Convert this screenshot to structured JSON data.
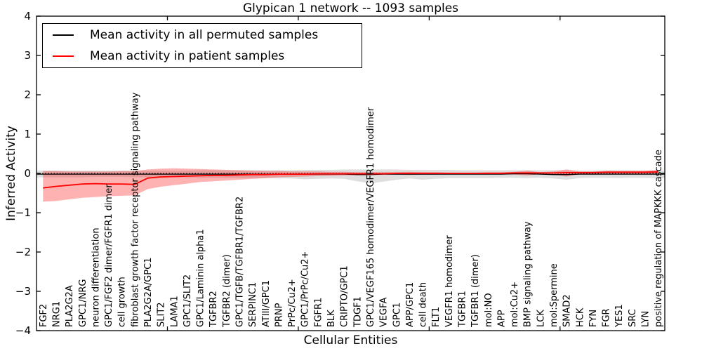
{
  "title": "Glypican 1 network -- 1093 samples",
  "axes": {
    "x_label": "Cellular Entities",
    "y_label": "Inferred Activity"
  },
  "legend": {
    "items": [
      {
        "label": "Mean activity in all permuted samples",
        "color": "#000000"
      },
      {
        "label": "Mean activity in patient samples",
        "color": "#ff0000"
      }
    ]
  },
  "chart_data": {
    "type": "line",
    "title": "Glypican 1 network -- 1093 samples",
    "xlabel": "Cellular Entities",
    "ylabel": "Inferred Activity",
    "ylim": [
      -4,
      4
    ],
    "y_ticks": [
      4,
      3,
      2,
      1,
      0,
      -1,
      -2,
      -3,
      -4
    ],
    "x_major_ticks": [
      10,
      20,
      30,
      40
    ],
    "zero_line": 0,
    "grid": false,
    "legend_position": "upper left",
    "categories": [
      "FGF2",
      "NRG1",
      "PLA2G2A",
      "GPC1/NRG",
      "neuron differentiation",
      "GPC1/FGF2 dimer/FGFR1 dimer",
      "cell growth",
      "fibroblast growth factor receptor signaling pathway",
      "PLA2G2A/GPC1",
      "SLIT2",
      "LAMA1",
      "GPC1/SLIT2",
      "GPC1/Laminin alpha1",
      "TGFBR2",
      "TGFBR2 (dimer)",
      "GPC1/TGFB/TGFBR1/TGFBR2",
      "SERPINC1",
      "ATIII/GPC1",
      "PRNP",
      "PrPc/Cu2+",
      "GPC1/PrPc/Cu2+",
      "FGFR1",
      "BLK",
      "CRIPTO/GPC1",
      "TDGF1",
      "GPC1/VEGF165 homodimer/VEGFR1 homodimer",
      "VEGFA",
      "GPC1",
      "APP/GPC1",
      "cell death",
      "FLT1",
      "VEGFR1 homodimer",
      "TGFBR1",
      "TGFBR1 (dimer)",
      "mol:NO",
      "APP",
      "mol:Cu2+",
      "BMP signaling pathway",
      "LCK",
      "mol:Spermine",
      "SMAD2",
      "HCK",
      "FYN",
      "FGR",
      "YES1",
      "SRC",
      "LYN",
      "positive regulation of MAPKKK cascade"
    ],
    "series": [
      {
        "name": "Mean activity in all permuted samples",
        "id": "permuted-mean-line",
        "color": "#000000",
        "width": 1.3,
        "extend_to_edges": true,
        "values": [
          -0.02,
          -0.02,
          -0.02,
          -0.02,
          -0.02,
          -0.02,
          -0.02,
          -0.02,
          -0.02,
          -0.02,
          -0.02,
          -0.02,
          -0.02,
          -0.02,
          -0.02,
          -0.02,
          -0.02,
          -0.02,
          -0.02,
          -0.02,
          -0.02,
          -0.02,
          -0.02,
          -0.02,
          -0.03,
          -0.03,
          -0.02,
          -0.02,
          -0.02,
          -0.02,
          -0.02,
          -0.02,
          -0.02,
          -0.02,
          -0.02,
          -0.02,
          -0.01,
          -0.01,
          -0.02,
          -0.03,
          -0.03,
          -0.02,
          -0.02,
          -0.02,
          -0.02,
          -0.02,
          -0.02,
          -0.02
        ]
      },
      {
        "name": "Mean activity in patient samples",
        "id": "patient-mean-line",
        "color": "#ff0000",
        "width": 1.8,
        "extend_to_edges": false,
        "values": [
          -0.37,
          -0.33,
          -0.3,
          -0.27,
          -0.26,
          -0.27,
          -0.27,
          -0.28,
          -0.12,
          -0.09,
          -0.08,
          -0.07,
          -0.06,
          -0.05,
          -0.05,
          -0.04,
          -0.03,
          -0.03,
          -0.02,
          -0.02,
          -0.02,
          -0.01,
          -0.01,
          -0.01,
          -0.01,
          -0.01,
          -0.01,
          0.0,
          0.0,
          0.0,
          0.0,
          0.0,
          0.0,
          0.0,
          0.0,
          0.0,
          0.01,
          0.01,
          0.01,
          0.01,
          0.02,
          0.02,
          0.02,
          0.03,
          0.03,
          0.03,
          0.03,
          0.04
        ]
      }
    ],
    "bands": [
      {
        "name": "permuted-range-band",
        "color": "rgba(0,0,0,0.13)",
        "extend_to_edges": true,
        "lower": [
          -0.1,
          -0.1,
          -0.1,
          -0.1,
          -0.09,
          -0.09,
          -0.09,
          -0.1,
          -0.1,
          -0.1,
          -0.1,
          -0.1,
          -0.11,
          -0.11,
          -0.11,
          -0.12,
          -0.12,
          -0.12,
          -0.12,
          -0.13,
          -0.15,
          -0.14,
          -0.13,
          -0.14,
          -0.2,
          -0.25,
          -0.21,
          -0.16,
          -0.13,
          -0.16,
          -0.14,
          -0.12,
          -0.12,
          -0.12,
          -0.12,
          -0.11,
          -0.11,
          -0.12,
          -0.11,
          -0.13,
          -0.16,
          -0.12,
          -0.11,
          -0.11,
          -0.12,
          -0.11,
          -0.11,
          -0.12
        ],
        "upper": [
          0.07,
          0.07,
          0.07,
          0.07,
          0.07,
          0.07,
          0.07,
          0.07,
          0.07,
          0.07,
          0.07,
          0.07,
          0.08,
          0.08,
          0.08,
          0.08,
          0.08,
          0.08,
          0.08,
          0.08,
          0.09,
          0.09,
          0.09,
          0.1,
          0.1,
          0.1,
          0.1,
          0.1,
          0.09,
          0.09,
          0.09,
          0.09,
          0.08,
          0.08,
          0.08,
          0.08,
          0.08,
          0.08,
          0.08,
          0.08,
          0.08,
          0.07,
          0.07,
          0.08,
          0.08,
          0.08,
          0.07,
          0.07
        ]
      },
      {
        "name": "patient-range-band",
        "color": "rgba(255,0,0,0.30)",
        "extend_to_edges": false,
        "lower": [
          -0.72,
          -0.7,
          -0.66,
          -0.62,
          -0.6,
          -0.58,
          -0.57,
          -0.56,
          -0.4,
          -0.34,
          -0.3,
          -0.26,
          -0.22,
          -0.2,
          -0.18,
          -0.16,
          -0.14,
          -0.12,
          -0.1,
          -0.09,
          -0.08,
          -0.07,
          -0.06,
          -0.05,
          -0.04,
          -0.04,
          -0.03,
          -0.03,
          -0.04,
          -0.03,
          -0.03,
          -0.02,
          -0.02,
          -0.02,
          -0.02,
          -0.02,
          -0.03,
          -0.05,
          -0.02,
          -0.03,
          -0.08,
          -0.02,
          -0.01,
          -0.01,
          -0.01,
          -0.01,
          -0.02,
          -0.02
        ],
        "upper": [
          0.06,
          0.06,
          0.05,
          0.05,
          0.05,
          0.05,
          0.06,
          0.06,
          0.1,
          0.12,
          0.13,
          0.12,
          0.11,
          0.1,
          0.09,
          0.08,
          0.07,
          0.06,
          0.06,
          0.05,
          0.05,
          0.05,
          0.04,
          0.04,
          0.03,
          0.03,
          0.03,
          0.03,
          0.04,
          0.03,
          0.03,
          0.02,
          0.02,
          0.02,
          0.03,
          0.03,
          0.04,
          0.07,
          0.03,
          0.05,
          0.1,
          0.05,
          0.05,
          0.06,
          0.06,
          0.06,
          0.07,
          0.09
        ]
      }
    ]
  }
}
